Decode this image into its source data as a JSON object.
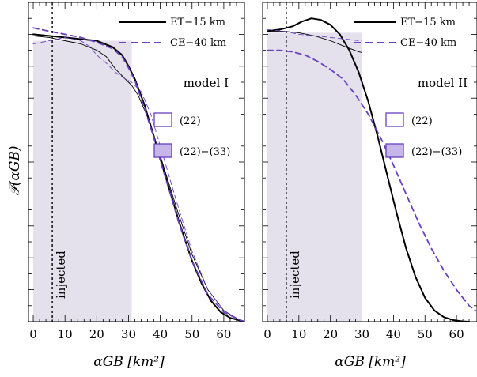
{
  "chart_data": [
    {
      "type": "line",
      "model_label": "model I",
      "xlabel": "αGB [km²]",
      "ylabel": "𝒫(αGB)",
      "xlim": [
        -1.5,
        66.5
      ],
      "ylim": [
        0,
        1.0
      ],
      "xticks": [
        0,
        10,
        20,
        30,
        40,
        50,
        60
      ],
      "injected_value": 6,
      "injected_label": "injected",
      "prior_region": [
        0,
        31
      ],
      "legend": [
        {
          "label": "ET−15 km",
          "style": "solid",
          "color": "#000000"
        },
        {
          "label": "CE−40 km",
          "style": "dashed",
          "color": "#6a3fc0"
        }
      ],
      "box_legend": [
        {
          "label": "(22)",
          "filled": false
        },
        {
          "label": "(22)−(33)",
          "filled": true
        }
      ],
      "series": [
        {
          "name": "ET−15 km",
          "variant": "(22)−(33)",
          "x": [
            0,
            5,
            10,
            15,
            20,
            25,
            28,
            30,
            32,
            35,
            38,
            40,
            43,
            46,
            50,
            53,
            56,
            59,
            62,
            65,
            66
          ],
          "y": [
            0.9,
            0.895,
            0.89,
            0.885,
            0.88,
            0.86,
            0.835,
            0.8,
            0.76,
            0.68,
            0.58,
            0.51,
            0.41,
            0.31,
            0.19,
            0.12,
            0.065,
            0.03,
            0.012,
            0.004,
            0.002
          ]
        },
        {
          "name": "ET−15 km",
          "variant": "(22)",
          "x": [
            0,
            5,
            10,
            15,
            20,
            23,
            26,
            29,
            31,
            33,
            36,
            40,
            45,
            50,
            55,
            60,
            65,
            66
          ],
          "y": [
            0.895,
            0.89,
            0.88,
            0.87,
            0.85,
            0.83,
            0.79,
            0.76,
            0.74,
            0.71,
            0.64,
            0.52,
            0.36,
            0.21,
            0.1,
            0.035,
            0.005,
            0.002
          ]
        },
        {
          "name": "CE−40 km",
          "variant": "(22)−(33)",
          "x": [
            0,
            5,
            10,
            15,
            20,
            25,
            28,
            30,
            32,
            35,
            38,
            40,
            43,
            46,
            50,
            55,
            60,
            65,
            66
          ],
          "y": [
            0.92,
            0.91,
            0.9,
            0.89,
            0.875,
            0.855,
            0.83,
            0.795,
            0.755,
            0.67,
            0.575,
            0.505,
            0.405,
            0.305,
            0.19,
            0.085,
            0.03,
            0.006,
            0.002
          ]
        },
        {
          "name": "CE−40 km",
          "variant": "(22)",
          "x": [
            0,
            5,
            10,
            15,
            18,
            20,
            23,
            26,
            29,
            31,
            34,
            37,
            40,
            45,
            50,
            55,
            60,
            65,
            66
          ],
          "y": [
            0.87,
            0.88,
            0.89,
            0.88,
            0.86,
            0.835,
            0.81,
            0.78,
            0.76,
            0.75,
            0.72,
            0.65,
            0.55,
            0.38,
            0.22,
            0.1,
            0.035,
            0.005,
            0.002
          ]
        }
      ]
    },
    {
      "type": "line",
      "model_label": "model II",
      "xlabel": "αGB [km²]",
      "xlim": [
        -1.5,
        66.5
      ],
      "ylim": [
        0,
        1.0
      ],
      "xticks": [
        0,
        10,
        20,
        30,
        40,
        50,
        60
      ],
      "injected_value": 6,
      "injected_label": "injected",
      "prior_region": [
        0,
        30
      ],
      "legend": [
        {
          "label": "ET−15 km",
          "style": "solid",
          "color": "#000000"
        },
        {
          "label": "CE−40 km",
          "style": "dashed",
          "color": "#6a3fc0"
        }
      ],
      "box_legend": [
        {
          "label": "(22)",
          "filled": false
        },
        {
          "label": "(22)−(33)",
          "filled": true
        }
      ],
      "series": [
        {
          "name": "ET−15 km",
          "variant": "(22)−(33)",
          "x": [
            0,
            4,
            8,
            11,
            14,
            17,
            20,
            23,
            26,
            29,
            32,
            35,
            38,
            41,
            44,
            47,
            50,
            53,
            56,
            59,
            62,
            64
          ],
          "y": [
            0.91,
            0.915,
            0.925,
            0.94,
            0.95,
            0.945,
            0.93,
            0.9,
            0.85,
            0.78,
            0.69,
            0.58,
            0.46,
            0.34,
            0.23,
            0.14,
            0.075,
            0.035,
            0.014,
            0.005,
            0.001,
            0.0
          ]
        },
        {
          "name": "ET−15 km",
          "variant": "(22)",
          "x": [
            0,
            5,
            10,
            15,
            20,
            25,
            29,
            30
          ],
          "y": [
            0.91,
            0.91,
            0.905,
            0.895,
            0.88,
            0.86,
            0.845,
            0.843
          ]
        },
        {
          "name": "CE−40 km",
          "variant": "(22)−(33)",
          "x": [
            0,
            4,
            8,
            12,
            16,
            20,
            24,
            28,
            32,
            36,
            40,
            44,
            48,
            52,
            56,
            60,
            64,
            66
          ],
          "y": [
            0.85,
            0.85,
            0.845,
            0.835,
            0.815,
            0.79,
            0.76,
            0.71,
            0.65,
            0.575,
            0.49,
            0.4,
            0.31,
            0.23,
            0.16,
            0.1,
            0.05,
            0.035
          ]
        },
        {
          "name": "CE−40 km",
          "variant": "(22)",
          "x": [
            0,
            5,
            10,
            15,
            20,
            25,
            29,
            30
          ],
          "y": [
            0.915,
            0.91,
            0.9,
            0.895,
            0.89,
            0.885,
            0.88,
            0.88
          ]
        }
      ]
    }
  ]
}
